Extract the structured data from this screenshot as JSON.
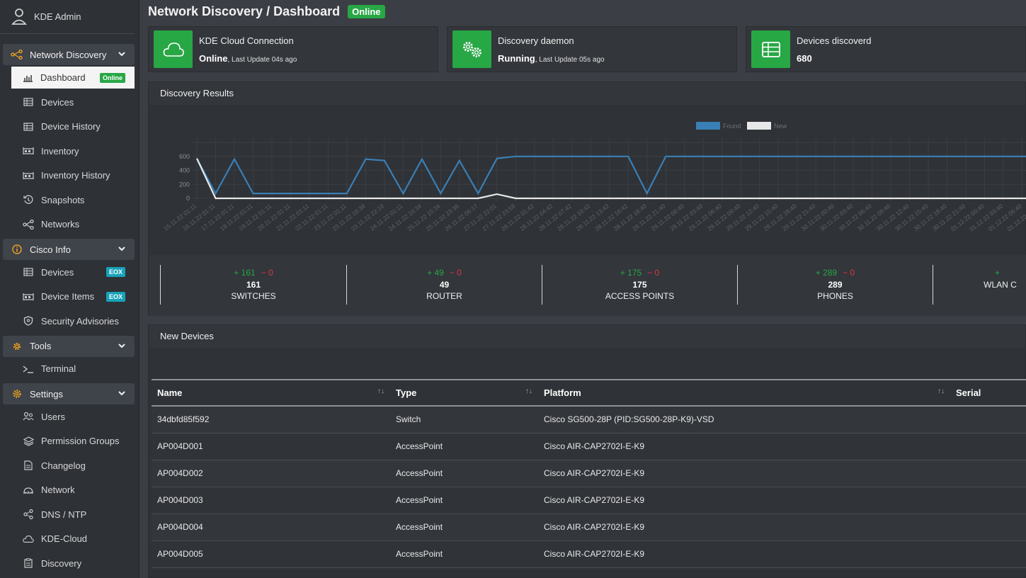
{
  "user": {
    "name": "KDE Admin"
  },
  "sidebar": {
    "sections": [
      {
        "label": "Network Discovery",
        "items": [
          "Dashboard",
          "Devices",
          "Device History",
          "Inventory",
          "Inventory History",
          "Snapshots",
          "Networks"
        ]
      },
      {
        "label": "Cisco Info",
        "items": [
          "Devices",
          "Device Items",
          "Security Advisories"
        ]
      },
      {
        "label": "Tools",
        "items": [
          "Terminal"
        ]
      },
      {
        "label": "Settings",
        "items": [
          "Users",
          "Permission Groups",
          "Changelog",
          "Network",
          "DNS / NTP",
          "KDE-Cloud",
          "Discovery"
        ]
      }
    ],
    "badges": {
      "online": "Online",
      "eox": "EOX"
    }
  },
  "header": {
    "title": "Network Discovery / Dashboard",
    "status": "Online"
  },
  "cards": [
    {
      "title": "KDE Cloud Connection",
      "value": "Online",
      "sub": ", Last Update 04s ago"
    },
    {
      "title": "Discovery daemon",
      "value": "Running",
      "sub": ", Last Update 05s ago"
    },
    {
      "title": "Devices discoverd",
      "value": "680",
      "sub": ""
    }
  ],
  "results": {
    "title": "Discovery Results"
  },
  "chart_data": {
    "type": "line",
    "legend": [
      "Found",
      "New"
    ],
    "ylim": [
      0,
      800
    ],
    "yticks": [
      0,
      200,
      400,
      600,
      800
    ],
    "x": [
      "15.11.22 01:11",
      "16.11.22 01:11",
      "17.11.22 01:11",
      "18.11.22 01:11",
      "19.11.22 01:11",
      "20.11.22 01:11",
      "21.11.22 01:11",
      "22.11.22 01:11",
      "23.11.22 01:11",
      "23.11.22 16:38",
      "23.11.22 22:10",
      "24.11.22 01:11",
      "24.11.22 16:34",
      "25.11.22 15:34",
      "25.11.22 23:36",
      "26.11.22 06:17",
      "27.11.22 22:01",
      "27.11.22 23:58",
      "28.11.22 01:42",
      "28.11.22 04:42",
      "28.11.22 07:42",
      "28.11.22 10:42",
      "28.11.22 13:42",
      "28.11.22 16:42",
      "28.11.22 18:40",
      "28.11.22 21:40",
      "29.11.22 00:40",
      "29.11.22 03:40",
      "29.11.22 06:40",
      "29.11.22 09:40",
      "29.11.22 12:40",
      "29.11.22 15:40",
      "29.11.22 18:40",
      "29.11.22 21:40",
      "30.11.22 00:40",
      "30.11.22 03:40",
      "30.11.22 06:40",
      "30.11.22 09:40",
      "30.11.22 12:40",
      "30.11.22 15:40",
      "30.11.22 18:40",
      "30.11.22 21:40",
      "01.12.22 00:40",
      "01.12.22 03:40",
      "01.12.22 06:40",
      "01.12.22 09:40"
    ],
    "series": [
      {
        "name": "Found",
        "color": "#3a7fb5",
        "values": [
          570,
          70,
          560,
          70,
          70,
          70,
          70,
          70,
          70,
          560,
          540,
          70,
          560,
          70,
          540,
          70,
          570,
          600,
          600,
          600,
          600,
          600,
          600,
          600,
          70,
          600,
          600,
          600,
          600,
          600,
          600,
          600,
          600,
          600,
          600,
          600,
          600,
          600,
          600,
          600,
          600,
          600,
          600,
          600,
          600,
          600
        ]
      },
      {
        "name": "New",
        "color": "#e8e8e8",
        "values": [
          570,
          0,
          0,
          0,
          0,
          0,
          0,
          0,
          0,
          0,
          0,
          0,
          0,
          0,
          0,
          0,
          60,
          0,
          0,
          0,
          0,
          0,
          0,
          0,
          0,
          0,
          0,
          0,
          0,
          0,
          0,
          0,
          0,
          0,
          0,
          0,
          0,
          0,
          0,
          0,
          0,
          0,
          0,
          0,
          0,
          0
        ]
      }
    ]
  },
  "stats": [
    {
      "plus": "+ 161",
      "minus": "− 0",
      "total": "161",
      "label": "SWITCHES"
    },
    {
      "plus": "+ 49",
      "minus": "− 0",
      "total": "49",
      "label": "ROUTER"
    },
    {
      "plus": "+ 175",
      "minus": "− 0",
      "total": "175",
      "label": "ACCESS POINTS"
    },
    {
      "plus": "+ 289",
      "minus": "− 0",
      "total": "289",
      "label": "PHONES"
    },
    {
      "plus": "+",
      "minus": "",
      "total": "",
      "label": "WLAN C"
    }
  ],
  "newdevices": {
    "title": "New Devices",
    "columns": [
      "Name",
      "Type",
      "Platform",
      "Serial"
    ],
    "rows": [
      [
        "34dbfd85f592",
        "Switch",
        "Cisco SG500-28P (PID:SG500-28P-K9)-VSD",
        ""
      ],
      [
        "AP004D001",
        "AccessPoint",
        "Cisco AIR-CAP2702I-E-K9",
        ""
      ],
      [
        "AP004D002",
        "AccessPoint",
        "Cisco AIR-CAP2702I-E-K9",
        ""
      ],
      [
        "AP004D003",
        "AccessPoint",
        "Cisco AIR-CAP2702I-E-K9",
        ""
      ],
      [
        "AP004D004",
        "AccessPoint",
        "Cisco AIR-CAP2702I-E-K9",
        ""
      ],
      [
        "AP004D005",
        "AccessPoint",
        "Cisco AIR-CAP2702I-E-K9",
        ""
      ]
    ]
  },
  "colors": {
    "accent": "#28a745",
    "info": "#17a2b8",
    "bg": "#3b3f45",
    "danger": "#dc3545",
    "orange": "#f0a020"
  }
}
